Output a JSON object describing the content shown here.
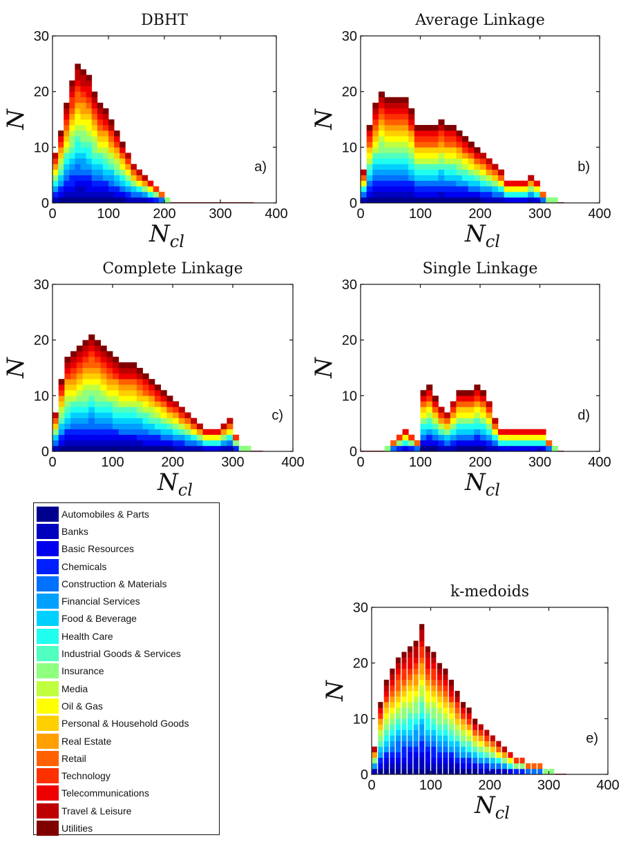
{
  "chart_data": [
    {
      "type": "area",
      "title": "DBHT",
      "panel_label": "a)",
      "xlabel_base": "N",
      "xlabel_sub": "cl",
      "ylabel": "N",
      "xlim": [
        0,
        400
      ],
      "ylim": [
        0,
        30
      ],
      "xticks": [
        "0",
        "100",
        "200",
        "300",
        "400"
      ],
      "yticks": [
        "0",
        "10",
        "20",
        "30"
      ],
      "x": [
        0,
        10,
        20,
        30,
        40,
        50,
        60,
        70,
        80,
        90,
        100,
        110,
        120,
        130,
        140,
        150,
        160,
        170,
        180,
        190,
        200,
        210,
        220,
        350
      ],
      "total": [
        9,
        13,
        18,
        22,
        25,
        24,
        23,
        20,
        18,
        17,
        15,
        13,
        11,
        9,
        7,
        6,
        5,
        4,
        3,
        2,
        1,
        0,
        0,
        0
      ]
    },
    {
      "type": "area",
      "title": "Average Linkage",
      "panel_label": "b)",
      "xlabel_base": "N",
      "xlabel_sub": "cl",
      "ylabel": "N",
      "xlim": [
        0,
        400
      ],
      "ylim": [
        0,
        30
      ],
      "xticks": [
        "0",
        "100",
        "200",
        "300",
        "400"
      ],
      "yticks": [
        "0",
        "10",
        "20",
        "30"
      ],
      "x": [
        0,
        10,
        20,
        30,
        40,
        50,
        60,
        70,
        80,
        90,
        100,
        110,
        120,
        130,
        140,
        150,
        160,
        170,
        180,
        190,
        200,
        210,
        220,
        230,
        240,
        250,
        260,
        270,
        280,
        290,
        300,
        310,
        320,
        330
      ],
      "total": [
        6,
        14,
        18,
        20,
        19,
        19,
        19,
        19,
        17,
        14,
        14,
        14,
        14,
        15,
        14,
        14,
        13,
        12,
        11,
        10,
        9,
        8,
        7,
        6,
        4,
        4,
        4,
        4,
        5,
        4,
        2,
        1,
        1,
        0
      ]
    },
    {
      "type": "area",
      "title": "Complete Linkage",
      "panel_label": "c)",
      "xlabel_base": "N",
      "xlabel_sub": "cl",
      "ylabel": "N",
      "xlim": [
        0,
        400
      ],
      "ylim": [
        0,
        30
      ],
      "xticks": [
        "0",
        "100",
        "200",
        "300",
        "400"
      ],
      "yticks": [
        "0",
        "10",
        "20",
        "30"
      ],
      "x": [
        0,
        10,
        20,
        30,
        40,
        50,
        60,
        70,
        80,
        90,
        100,
        110,
        120,
        130,
        140,
        150,
        160,
        170,
        180,
        190,
        200,
        210,
        220,
        230,
        240,
        250,
        260,
        270,
        280,
        290,
        300,
        310,
        320,
        330,
        340
      ],
      "total": [
        7,
        13,
        17,
        18,
        19,
        20,
        21,
        20,
        19,
        18,
        17,
        16,
        16,
        16,
        15,
        14,
        13,
        12,
        11,
        10,
        9,
        8,
        7,
        6,
        5,
        4,
        4,
        4,
        5,
        6,
        3,
        1,
        1,
        0,
        0
      ]
    },
    {
      "type": "area",
      "title": "Single Linkage",
      "panel_label": "d)",
      "xlabel_base": "N",
      "xlabel_sub": "cl",
      "ylabel": "N",
      "xlim": [
        0,
        400
      ],
      "ylim": [
        0,
        30
      ],
      "xticks": [
        "0",
        "100",
        "200",
        "300",
        "400"
      ],
      "yticks": [
        "0",
        "10",
        "20",
        "30"
      ],
      "x": [
        0,
        10,
        20,
        30,
        40,
        50,
        60,
        70,
        80,
        90,
        100,
        110,
        120,
        130,
        140,
        150,
        160,
        170,
        180,
        190,
        200,
        210,
        220,
        230,
        240,
        250,
        260,
        270,
        280,
        290,
        300,
        310,
        320,
        330
      ],
      "total": [
        0,
        0,
        0,
        0,
        1,
        2,
        3,
        4,
        3,
        2,
        11,
        12,
        10,
        8,
        7,
        9,
        11,
        11,
        11,
        12,
        11,
        9,
        6,
        4,
        4,
        4,
        4,
        4,
        4,
        4,
        4,
        2,
        1,
        0
      ]
    },
    {
      "type": "bar",
      "title": "k-medoids",
      "panel_label": "e)",
      "xlabel_base": "N",
      "xlabel_sub": "cl",
      "ylabel": "N",
      "xlim": [
        0,
        400
      ],
      "ylim": [
        0,
        30
      ],
      "xticks": [
        "0",
        "100",
        "200",
        "300",
        "400"
      ],
      "yticks": [
        "0",
        "10",
        "20",
        "30"
      ],
      "x": [
        0,
        10,
        20,
        30,
        40,
        50,
        60,
        70,
        80,
        90,
        100,
        110,
        120,
        130,
        140,
        150,
        160,
        170,
        180,
        190,
        200,
        210,
        220,
        230,
        240,
        250,
        260,
        270,
        280,
        290,
        300,
        310,
        320
      ],
      "total": [
        5,
        13,
        17,
        19,
        21,
        22,
        23,
        24,
        27,
        23,
        22,
        20,
        19,
        17,
        15,
        13,
        12,
        10,
        9,
        8,
        7,
        6,
        5,
        4,
        3,
        3,
        2,
        2,
        2,
        1,
        1,
        0,
        0
      ]
    }
  ],
  "legend": {
    "items": [
      {
        "label": "Automobiles & Parts",
        "color": "#00008f"
      },
      {
        "label": "Banks",
        "color": "#0000bf"
      },
      {
        "label": "Basic Resources",
        "color": "#0000ef"
      },
      {
        "label": "Chemicals",
        "color": "#0020ff"
      },
      {
        "label": "Construction & Materials",
        "color": "#0070ff"
      },
      {
        "label": "Financial Services",
        "color": "#00a0ff"
      },
      {
        "label": "Food & Beverage",
        "color": "#00d0ff"
      },
      {
        "label": "Health Care",
        "color": "#20ffef"
      },
      {
        "label": "Industrial Goods & Services",
        "color": "#50ffbf"
      },
      {
        "label": "Insurance",
        "color": "#8fff80"
      },
      {
        "label": "Media",
        "color": "#bfff40"
      },
      {
        "label": "Oil & Gas",
        "color": "#ffff00"
      },
      {
        "label": "Personal & Household Goods",
        "color": "#ffcf00"
      },
      {
        "label": "Real Estate",
        "color": "#ff9f00"
      },
      {
        "label": "Retail",
        "color": "#ff6000"
      },
      {
        "label": "Technology",
        "color": "#ff3000"
      },
      {
        "label": "Telecommunications",
        "color": "#ef0000"
      },
      {
        "label": "Travel & Leisure",
        "color": "#bf0000"
      },
      {
        "label": "Utilities",
        "color": "#800000"
      }
    ]
  }
}
